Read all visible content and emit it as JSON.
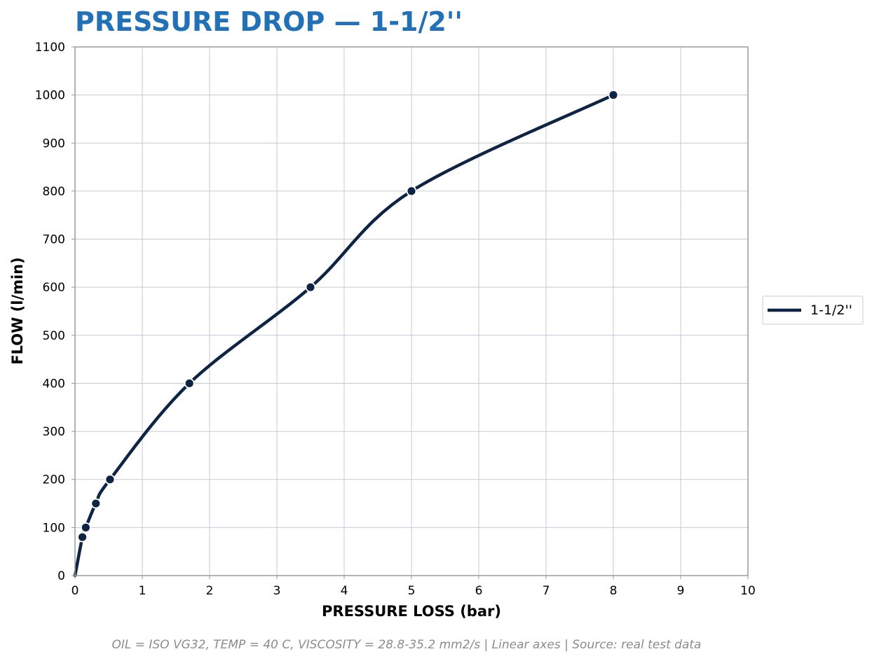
{
  "chart_data": {
    "type": "line",
    "title": "PRESSURE DROP — 1-1/2''",
    "xlabel": "PRESSURE LOSS (bar)",
    "ylabel": "FLOW (l/min)",
    "xlim": [
      0,
      10
    ],
    "ylim": [
      0,
      1100
    ],
    "xticks": [
      0,
      1,
      2,
      3,
      4,
      5,
      6,
      7,
      8,
      9,
      10
    ],
    "yticks": [
      0,
      100,
      200,
      300,
      400,
      500,
      600,
      700,
      800,
      900,
      1000,
      1100
    ],
    "grid": true,
    "legend_position": "right",
    "series": [
      {
        "name": "1-1/2''",
        "x": [
          0.11,
          0.16,
          0.31,
          0.52,
          1.7,
          3.5,
          5.0,
          8.0
        ],
        "y": [
          80,
          100,
          150,
          200,
          400,
          600,
          800,
          1000
        ],
        "curve_start": [
          0,
          0
        ]
      }
    ],
    "footnote": "OIL = ISO VG32,  TEMP = 40 C,  VISCOSITY = 28.8-35.2 mm2/s  |  Linear axes  |  Source: real test data"
  },
  "colors": {
    "title": "#2270b5",
    "series": "#0e2444",
    "grid": "#c3cad8",
    "frame": "#9a9a9a",
    "footnote": "#8c8c8c"
  }
}
